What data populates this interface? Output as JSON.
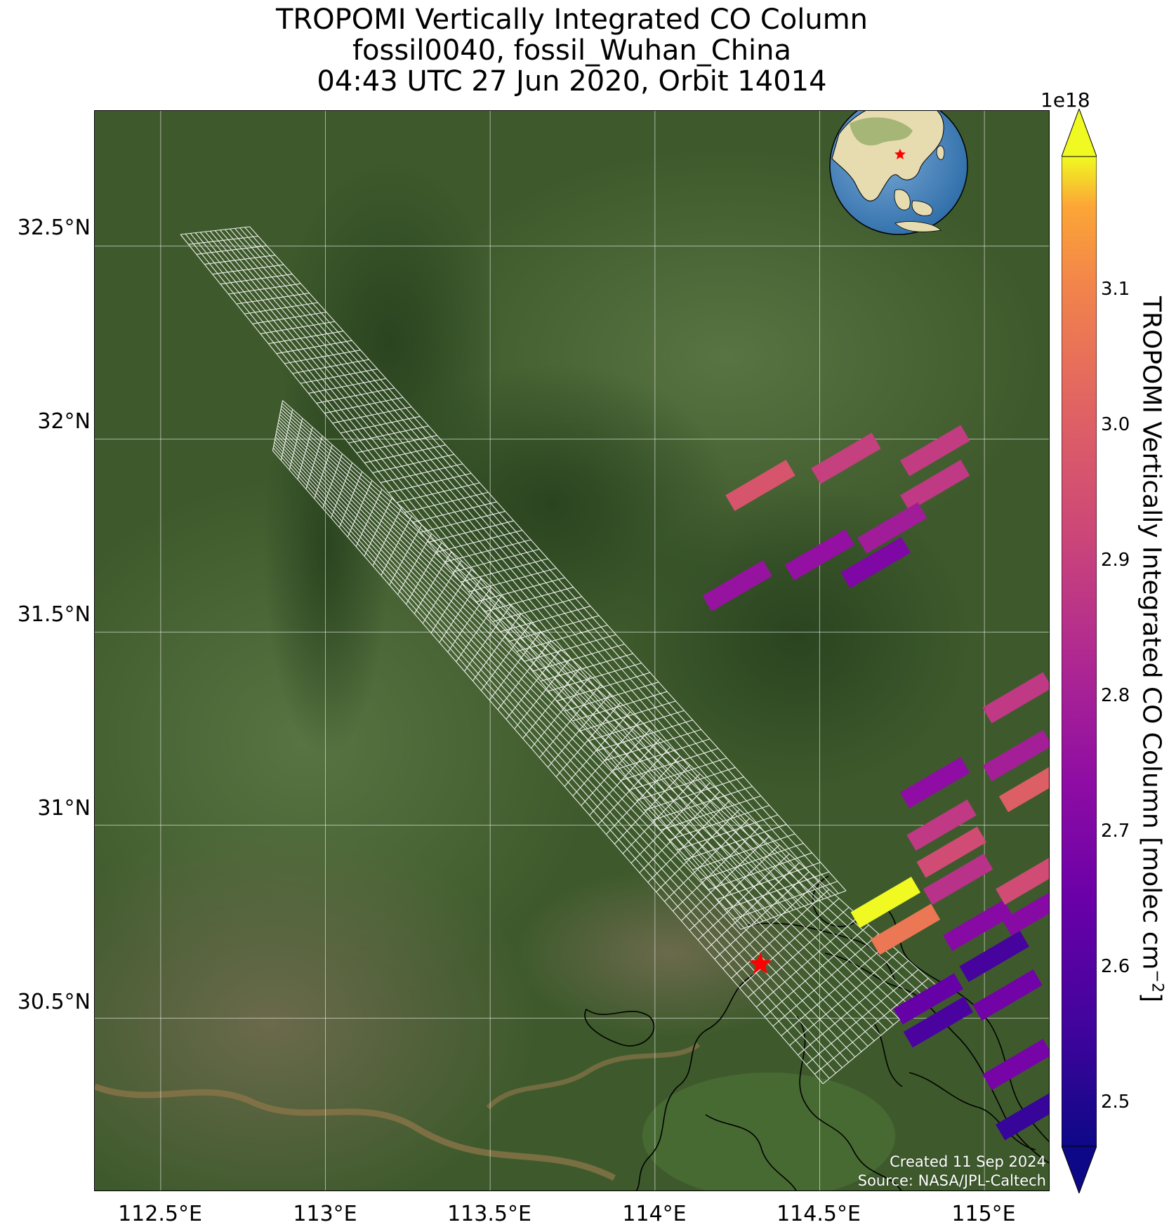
{
  "title": {
    "line1": "TROPOMI Vertically Integrated CO Column",
    "line2": "fossil0040, fossil_Wuhan_China",
    "line3": "04:43 UTC 27 Jun 2020, Orbit 14014"
  },
  "axes": {
    "lat_labels": [
      "32.5°N",
      "32°N",
      "31.5°N",
      "31°N",
      "30.5°N"
    ],
    "lon_labels": [
      "112.5°E",
      "113°E",
      "113.5°E",
      "114°E",
      "114.5°E",
      "115°E"
    ],
    "lon_range": [
      112.3,
      115.2
    ],
    "lat_range": [
      30.05,
      32.85
    ]
  },
  "colorbar": {
    "label_main": "TROPOMI Vertically Integrated CO Column [molec cm",
    "label_exp": "−2",
    "label_end": "]",
    "multiplier": "1e18",
    "ticks": [
      "3.1",
      "3.0",
      "2.9",
      "2.8",
      "2.7",
      "2.6",
      "2.5"
    ],
    "range": [
      2.45,
      3.18
    ],
    "colormap": "plasma",
    "extend": "both"
  },
  "target": {
    "name": "fossil_Wuhan_China",
    "lon": 114.32,
    "lat": 30.64,
    "marker_color": "#ff0000"
  },
  "credit": {
    "line1": "Created 11 Sep 2024",
    "line2": "Source: NASA/JPL-Caltech"
  },
  "inset_globe": {
    "marker": "red star",
    "region": "East Asia"
  },
  "chart_data": {
    "type": "heatmap",
    "units": "1e18 molec cm^-2",
    "pixels": [
      {
        "lon": 114.32,
        "lat": 31.88,
        "value": 2.95
      },
      {
        "lon": 114.58,
        "lat": 31.95,
        "value": 2.88
      },
      {
        "lon": 114.85,
        "lat": 31.97,
        "value": 2.87
      },
      {
        "lon": 114.85,
        "lat": 31.88,
        "value": 2.86
      },
      {
        "lon": 114.72,
        "lat": 31.77,
        "value": 2.77
      },
      {
        "lon": 114.5,
        "lat": 31.7,
        "value": 2.73
      },
      {
        "lon": 114.25,
        "lat": 31.62,
        "value": 2.74
      },
      {
        "lon": 114.67,
        "lat": 31.68,
        "value": 2.68
      },
      {
        "lon": 115.1,
        "lat": 31.33,
        "value": 2.86
      },
      {
        "lon": 115.1,
        "lat": 31.18,
        "value": 2.78
      },
      {
        "lon": 115.15,
        "lat": 31.1,
        "value": 2.98
      },
      {
        "lon": 114.85,
        "lat": 31.11,
        "value": 2.72
      },
      {
        "lon": 114.87,
        "lat": 31.0,
        "value": 2.86
      },
      {
        "lon": 114.9,
        "lat": 30.93,
        "value": 2.92
      },
      {
        "lon": 114.92,
        "lat": 30.86,
        "value": 2.84
      },
      {
        "lon": 114.7,
        "lat": 30.8,
        "value": 3.18
      },
      {
        "lon": 114.76,
        "lat": 30.73,
        "value": 3.05
      },
      {
        "lon": 114.98,
        "lat": 30.74,
        "value": 2.7
      },
      {
        "lon": 115.03,
        "lat": 30.66,
        "value": 2.55
      },
      {
        "lon": 115.07,
        "lat": 30.56,
        "value": 2.65
      },
      {
        "lon": 115.14,
        "lat": 30.86,
        "value": 2.92
      },
      {
        "lon": 115.16,
        "lat": 30.78,
        "value": 2.7
      },
      {
        "lon": 114.83,
        "lat": 30.55,
        "value": 2.62
      },
      {
        "lon": 114.86,
        "lat": 30.49,
        "value": 2.56
      },
      {
        "lon": 115.1,
        "lat": 30.38,
        "value": 2.66
      },
      {
        "lon": 115.14,
        "lat": 30.25,
        "value": 2.52
      }
    ]
  }
}
